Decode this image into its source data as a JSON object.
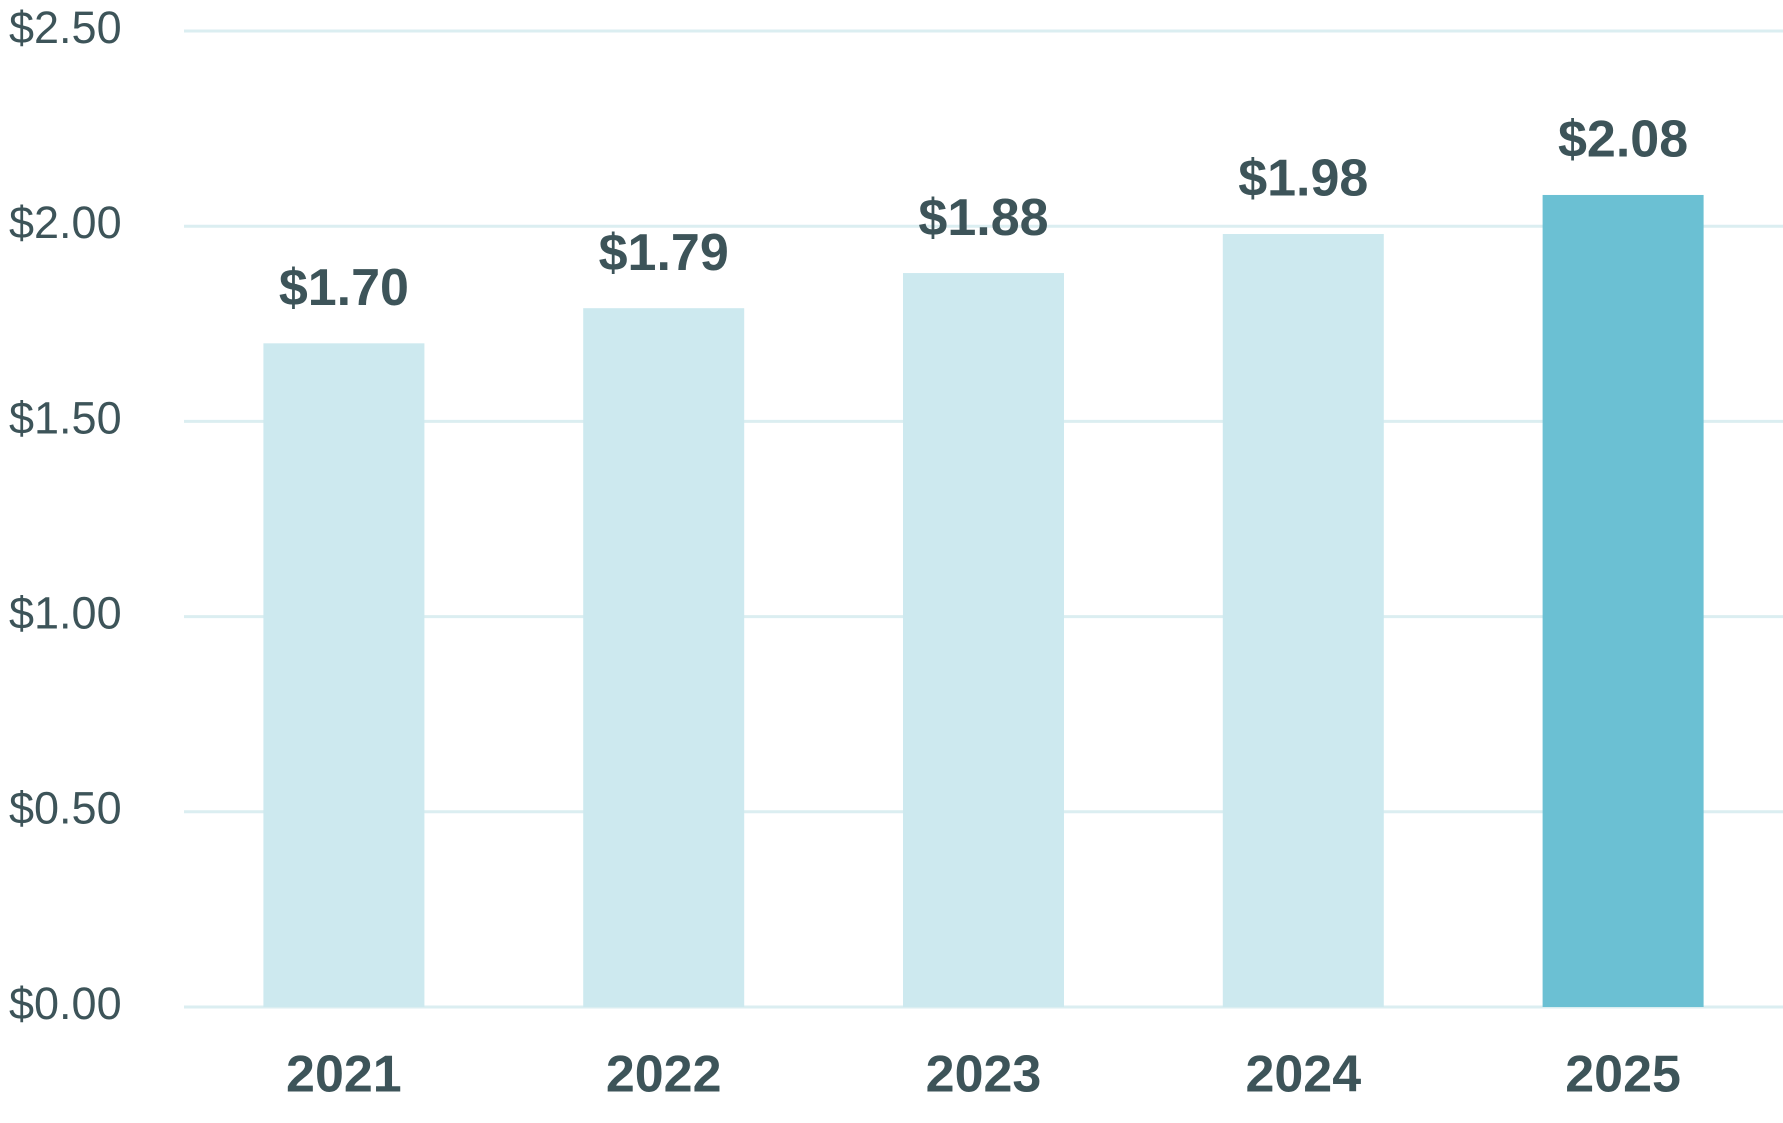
{
  "chart_data": {
    "type": "bar",
    "categories": [
      "2021",
      "2022",
      "2023",
      "2024",
      "2025"
    ],
    "values": [
      1.7,
      1.79,
      1.88,
      1.98,
      2.08
    ],
    "value_labels": [
      "$1.70",
      "$1.79",
      "$1.88",
      "$1.98",
      "$2.08"
    ],
    "colors": [
      "#cde9ef",
      "#cde9ef",
      "#cde9ef",
      "#cde9ef",
      "#6bc0d3"
    ],
    "ylim": [
      0,
      2.5
    ],
    "yticks": [
      {
        "value": 0,
        "label": "$0.00"
      },
      {
        "value": 0.5,
        "label": "$0.50"
      },
      {
        "value": 1,
        "label": "$1.00"
      },
      {
        "value": 1.5,
        "label": "$1.50"
      },
      {
        "value": 2,
        "label": "$2.00"
      },
      {
        "value": 2.5,
        "label": "$2.50"
      }
    ],
    "grid": true
  }
}
